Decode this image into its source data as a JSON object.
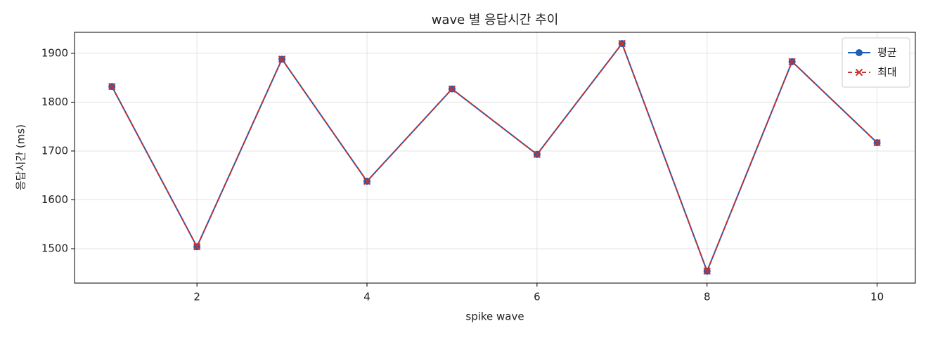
{
  "chart_data": {
    "type": "line",
    "title": "wave 별 응답시간 추이",
    "x_label": "spike wave",
    "y_label": "응답시간 (ms)",
    "x": [
      1,
      2,
      3,
      4,
      5,
      6,
      7,
      8,
      9,
      10
    ],
    "series": [
      {
        "name": "평균",
        "color": "#1f5fb4",
        "marker": "circle",
        "linestyle": "solid",
        "values": [
          1832,
          1504,
          1888,
          1638,
          1827,
          1693,
          1920,
          1454,
          1883,
          1717
        ]
      },
      {
        "name": "최대",
        "color": "#c93030",
        "marker": "cross",
        "linestyle": "dashed",
        "values": [
          1832,
          1504,
          1888,
          1638,
          1827,
          1693,
          1920,
          1454,
          1883,
          1717
        ]
      }
    ],
    "xlim": [
      0.56,
      10.45
    ],
    "xticks": [
      2,
      4,
      6,
      8,
      10
    ],
    "ylim": [
      1429.5,
      1943
    ],
    "yticks": [
      1500,
      1600,
      1700,
      1800,
      1900
    ],
    "grid": true,
    "legend": "upper right"
  }
}
